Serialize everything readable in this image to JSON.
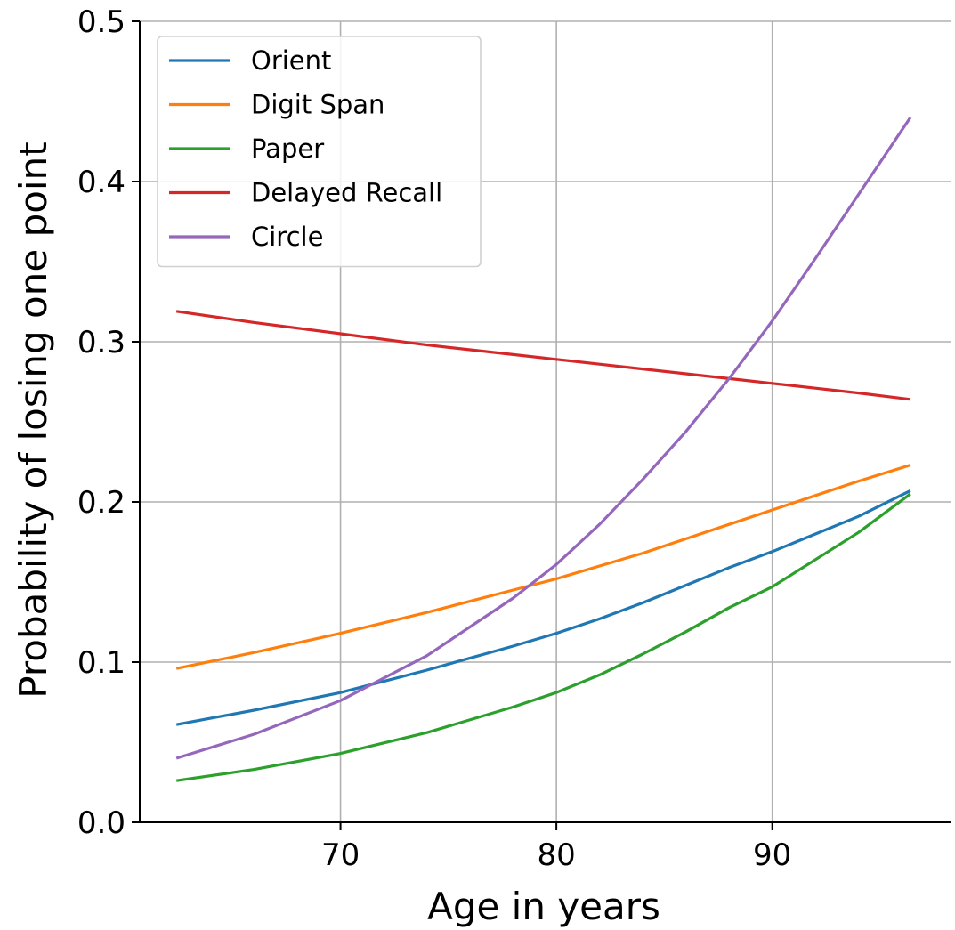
{
  "chart_data": {
    "type": "line",
    "title": "",
    "xlabel": "Age in years",
    "ylabel": "Probability of losing one point",
    "xlim": [
      60.7,
      98.3
    ],
    "ylim": [
      0,
      0.5
    ],
    "xticks": [
      70,
      80,
      90
    ],
    "xtick_labels": [
      "70",
      "80",
      "90"
    ],
    "yticks": [
      0,
      0.1,
      0.2,
      0.3,
      0.4,
      0.5
    ],
    "ytick_labels": [
      "0.0",
      "0.1",
      "0.2",
      "0.3",
      "0.4",
      "0.5"
    ],
    "grid": true,
    "legend_position": "top-left",
    "x": [
      62.4,
      66,
      70,
      74,
      78,
      80,
      82,
      84,
      86,
      88,
      90,
      92,
      94,
      96.4
    ],
    "series": [
      {
        "name": "Orient",
        "color": "#1f77b4",
        "values": [
          0.061,
          0.07,
          0.081,
          0.095,
          0.11,
          0.118,
          0.127,
          0.137,
          0.148,
          0.159,
          0.169,
          0.18,
          0.191,
          0.207
        ]
      },
      {
        "name": "Digit Span",
        "color": "#ff7f0e",
        "values": [
          0.096,
          0.106,
          0.118,
          0.131,
          0.145,
          0.152,
          0.16,
          0.168,
          0.177,
          0.186,
          0.195,
          0.204,
          0.213,
          0.223
        ]
      },
      {
        "name": "Paper",
        "color": "#2ca02c",
        "values": [
          0.026,
          0.033,
          0.043,
          0.056,
          0.072,
          0.081,
          0.092,
          0.105,
          0.119,
          0.134,
          0.147,
          0.164,
          0.181,
          0.205
        ]
      },
      {
        "name": "Delayed Recall",
        "color": "#d62728",
        "values": [
          0.319,
          0.312,
          0.305,
          0.298,
          0.292,
          0.289,
          0.286,
          0.283,
          0.28,
          0.277,
          0.274,
          0.271,
          0.268,
          0.264
        ]
      },
      {
        "name": "Circle",
        "color": "#9467bd",
        "values": [
          0.04,
          0.055,
          0.076,
          0.104,
          0.14,
          0.161,
          0.186,
          0.214,
          0.244,
          0.277,
          0.313,
          0.352,
          0.392,
          0.44
        ]
      }
    ]
  }
}
